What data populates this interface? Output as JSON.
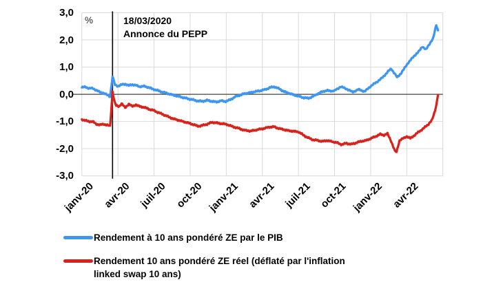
{
  "unit_label": "%",
  "annotation": {
    "line1": "18/03/2020",
    "line2": "Annonce du PEPP"
  },
  "legend": {
    "items": [
      {
        "label": "Rendement à 10 ans pondéré ZE par le PIB",
        "color": "#3E96F0"
      },
      {
        "label": "Rendement 10 ans pondéré ZE réel (déflaté par l'inflation\nlinked swap 10 ans)",
        "color": "#D8221C"
      }
    ]
  },
  "colors": {
    "blue_series": "#3E96F0",
    "red_series": "#D8221C",
    "gridline": "#D9D9D9",
    "zero_line": "#404040",
    "event_line": "#000000",
    "text": "#000000"
  },
  "chart_data": {
    "type": "line",
    "title": "",
    "ylabel": "%",
    "ylim": [
      -3,
      3
    ],
    "y_tick_step": 1,
    "y_tick_labels": [
      "3,0",
      "2,0",
      "1,0",
      "0,0",
      "-1,0",
      "-2,0",
      "-3,0"
    ],
    "x_tick_labels": [
      "janv-20",
      "avr-20",
      "juil-20",
      "oct-20",
      "janv-21",
      "avr-21",
      "juil-21",
      "oct-21",
      "janv-22",
      "avr-22"
    ],
    "x_unit": "months since janv-20, ticks every 3 months",
    "x_range_months": [
      0,
      30
    ],
    "grid": true,
    "legend_position": "bottom",
    "event_annotation": {
      "date": "18/03/2020",
      "text": "Annonce du PEPP",
      "x_months": 2.55
    },
    "series": [
      {
        "name": "Rendement à 10 ans pondéré ZE par le PIB",
        "color": "#3E96F0",
        "points": [
          [
            0,
            0.25
          ],
          [
            0.3,
            0.27
          ],
          [
            0.6,
            0.22
          ],
          [
            0.9,
            0.22
          ],
          [
            1.2,
            0.15
          ],
          [
            1.5,
            0.08
          ],
          [
            1.8,
            0.04
          ],
          [
            2.1,
            -0.02
          ],
          [
            2.35,
            -0.08
          ],
          [
            2.55,
            0.65
          ],
          [
            2.75,
            0.35
          ],
          [
            3.0,
            0.3
          ],
          [
            3.3,
            0.35
          ],
          [
            3.6,
            0.38
          ],
          [
            3.9,
            0.32
          ],
          [
            4.2,
            0.36
          ],
          [
            4.5,
            0.33
          ],
          [
            4.8,
            0.28
          ],
          [
            5.2,
            0.3
          ],
          [
            5.6,
            0.24
          ],
          [
            6.0,
            0.18
          ],
          [
            6.4,
            0.12
          ],
          [
            6.8,
            0.07
          ],
          [
            7.2,
            0.02
          ],
          [
            7.6,
            -0.03
          ],
          [
            8.0,
            -0.07
          ],
          [
            8.4,
            -0.12
          ],
          [
            8.8,
            -0.16
          ],
          [
            9.2,
            -0.2
          ],
          [
            9.6,
            -0.24
          ],
          [
            10.0,
            -0.26
          ],
          [
            10.4,
            -0.22
          ],
          [
            10.8,
            -0.26
          ],
          [
            11.2,
            -0.28
          ],
          [
            11.6,
            -0.24
          ],
          [
            12.0,
            -0.26
          ],
          [
            12.4,
            -0.18
          ],
          [
            12.8,
            -0.08
          ],
          [
            13.2,
            -0.02
          ],
          [
            13.6,
            0.03
          ],
          [
            14.0,
            0.06
          ],
          [
            14.4,
            0.1
          ],
          [
            14.8,
            0.13
          ],
          [
            15.2,
            0.17
          ],
          [
            15.6,
            0.24
          ],
          [
            16.0,
            0.28
          ],
          [
            16.4,
            0.2
          ],
          [
            16.8,
            0.1
          ],
          [
            17.2,
            0.04
          ],
          [
            17.6,
            -0.02
          ],
          [
            18.0,
            -0.07
          ],
          [
            18.4,
            -0.12
          ],
          [
            18.8,
            -0.15
          ],
          [
            19.2,
            -0.08
          ],
          [
            19.6,
            0.02
          ],
          [
            20.0,
            0.1
          ],
          [
            20.4,
            0.14
          ],
          [
            20.8,
            0.12
          ],
          [
            21.0,
            0.13
          ],
          [
            21.5,
            0.28
          ],
          [
            22.0,
            0.2
          ],
          [
            22.5,
            0.08
          ],
          [
            23.0,
            0.18
          ],
          [
            23.5,
            0.1
          ],
          [
            24.0,
            0.3
          ],
          [
            24.5,
            0.45
          ],
          [
            25.0,
            0.62
          ],
          [
            25.4,
            0.82
          ],
          [
            25.7,
            0.94
          ],
          [
            26.0,
            0.76
          ],
          [
            26.2,
            0.62
          ],
          [
            26.5,
            0.76
          ],
          [
            26.8,
            0.95
          ],
          [
            27.1,
            1.15
          ],
          [
            27.4,
            1.3
          ],
          [
            27.7,
            1.45
          ],
          [
            28.0,
            1.57
          ],
          [
            28.3,
            1.76
          ],
          [
            28.6,
            1.64
          ],
          [
            28.9,
            1.86
          ],
          [
            29.2,
            2.06
          ],
          [
            29.45,
            2.55
          ],
          [
            29.6,
            2.35
          ]
        ]
      },
      {
        "name": "Rendement 10 ans pondéré ZE réel (déflaté par l'inflation linked swap 10 ans)",
        "color": "#D8221C",
        "points": [
          [
            0,
            -0.92
          ],
          [
            0.3,
            -0.97
          ],
          [
            0.6,
            -1.0
          ],
          [
            0.9,
            -1.0
          ],
          [
            1.2,
            -1.1
          ],
          [
            1.5,
            -1.12
          ],
          [
            1.8,
            -1.1
          ],
          [
            2.1,
            -1.13
          ],
          [
            2.35,
            -1.17
          ],
          [
            2.55,
            0.1
          ],
          [
            2.7,
            -0.25
          ],
          [
            2.85,
            -0.42
          ],
          [
            3.1,
            -0.45
          ],
          [
            3.3,
            -0.33
          ],
          [
            3.6,
            -0.5
          ],
          [
            3.9,
            -0.35
          ],
          [
            4.2,
            -0.45
          ],
          [
            4.5,
            -0.38
          ],
          [
            4.8,
            -0.45
          ],
          [
            5.2,
            -0.48
          ],
          [
            5.6,
            -0.55
          ],
          [
            6.0,
            -0.6
          ],
          [
            6.4,
            -0.68
          ],
          [
            6.8,
            -0.75
          ],
          [
            7.2,
            -0.83
          ],
          [
            7.6,
            -0.9
          ],
          [
            8.0,
            -0.95
          ],
          [
            8.4,
            -1.0
          ],
          [
            8.8,
            -1.05
          ],
          [
            9.2,
            -1.1
          ],
          [
            9.6,
            -1.17
          ],
          [
            10.0,
            -1.15
          ],
          [
            10.4,
            -1.1
          ],
          [
            10.8,
            -1.03
          ],
          [
            11.2,
            -1.05
          ],
          [
            11.6,
            -1.08
          ],
          [
            12.0,
            -1.1
          ],
          [
            12.4,
            -1.17
          ],
          [
            12.8,
            -1.22
          ],
          [
            13.2,
            -1.28
          ],
          [
            13.6,
            -1.33
          ],
          [
            14.0,
            -1.35
          ],
          [
            14.4,
            -1.32
          ],
          [
            14.8,
            -1.28
          ],
          [
            15.2,
            -1.25
          ],
          [
            15.6,
            -1.2
          ],
          [
            16.0,
            -1.2
          ],
          [
            16.4,
            -1.26
          ],
          [
            16.8,
            -1.3
          ],
          [
            17.2,
            -1.34
          ],
          [
            17.6,
            -1.36
          ],
          [
            18.0,
            -1.38
          ],
          [
            18.4,
            -1.5
          ],
          [
            18.8,
            -1.6
          ],
          [
            19.2,
            -1.67
          ],
          [
            19.6,
            -1.7
          ],
          [
            20.0,
            -1.73
          ],
          [
            20.4,
            -1.7
          ],
          [
            20.8,
            -1.74
          ],
          [
            21.2,
            -1.78
          ],
          [
            21.6,
            -1.85
          ],
          [
            22.0,
            -1.8
          ],
          [
            22.4,
            -1.84
          ],
          [
            22.8,
            -1.78
          ],
          [
            23.2,
            -1.73
          ],
          [
            23.6,
            -1.7
          ],
          [
            24.0,
            -1.63
          ],
          [
            24.4,
            -1.55
          ],
          [
            24.8,
            -1.47
          ],
          [
            25.1,
            -1.5
          ],
          [
            25.4,
            -1.45
          ],
          [
            25.7,
            -1.72
          ],
          [
            26.0,
            -2.08
          ],
          [
            26.15,
            -2.12
          ],
          [
            26.4,
            -1.7
          ],
          [
            26.7,
            -1.62
          ],
          [
            27.0,
            -1.55
          ],
          [
            27.3,
            -1.62
          ],
          [
            27.6,
            -1.52
          ],
          [
            28.0,
            -1.38
          ],
          [
            28.4,
            -1.25
          ],
          [
            28.8,
            -1.1
          ],
          [
            29.1,
            -0.95
          ],
          [
            29.35,
            -0.6
          ],
          [
            29.5,
            -0.28
          ],
          [
            29.6,
            -0.02
          ]
        ]
      }
    ]
  }
}
